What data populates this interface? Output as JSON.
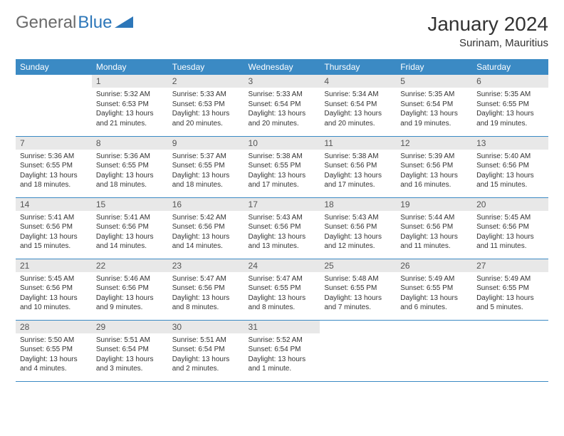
{
  "logo": {
    "general": "General",
    "blue": "Blue"
  },
  "title": "January 2024",
  "location": "Surinam, Mauritius",
  "colors": {
    "header_bg": "#3b8ac4",
    "header_text": "#ffffff",
    "daynum_bg": "#e8e8e8",
    "body_text": "#333333",
    "row_border": "#3b8ac4",
    "logo_gray": "#6a6a6a",
    "logo_blue": "#2d77b9"
  },
  "typography": {
    "title_fontsize": 28,
    "location_fontsize": 15,
    "header_fontsize": 12,
    "cell_fontsize": 10,
    "logo_fontsize": 24
  },
  "weekdays": [
    "Sunday",
    "Monday",
    "Tuesday",
    "Wednesday",
    "Thursday",
    "Friday",
    "Saturday"
  ],
  "weeks": [
    [
      {
        "n": "",
        "sunrise": "",
        "sunset": "",
        "daylight": ""
      },
      {
        "n": "1",
        "sunrise": "Sunrise: 5:32 AM",
        "sunset": "Sunset: 6:53 PM",
        "daylight": "Daylight: 13 hours and 21 minutes."
      },
      {
        "n": "2",
        "sunrise": "Sunrise: 5:33 AM",
        "sunset": "Sunset: 6:53 PM",
        "daylight": "Daylight: 13 hours and 20 minutes."
      },
      {
        "n": "3",
        "sunrise": "Sunrise: 5:33 AM",
        "sunset": "Sunset: 6:54 PM",
        "daylight": "Daylight: 13 hours and 20 minutes."
      },
      {
        "n": "4",
        "sunrise": "Sunrise: 5:34 AM",
        "sunset": "Sunset: 6:54 PM",
        "daylight": "Daylight: 13 hours and 20 minutes."
      },
      {
        "n": "5",
        "sunrise": "Sunrise: 5:35 AM",
        "sunset": "Sunset: 6:54 PM",
        "daylight": "Daylight: 13 hours and 19 minutes."
      },
      {
        "n": "6",
        "sunrise": "Sunrise: 5:35 AM",
        "sunset": "Sunset: 6:55 PM",
        "daylight": "Daylight: 13 hours and 19 minutes."
      }
    ],
    [
      {
        "n": "7",
        "sunrise": "Sunrise: 5:36 AM",
        "sunset": "Sunset: 6:55 PM",
        "daylight": "Daylight: 13 hours and 18 minutes."
      },
      {
        "n": "8",
        "sunrise": "Sunrise: 5:36 AM",
        "sunset": "Sunset: 6:55 PM",
        "daylight": "Daylight: 13 hours and 18 minutes."
      },
      {
        "n": "9",
        "sunrise": "Sunrise: 5:37 AM",
        "sunset": "Sunset: 6:55 PM",
        "daylight": "Daylight: 13 hours and 18 minutes."
      },
      {
        "n": "10",
        "sunrise": "Sunrise: 5:38 AM",
        "sunset": "Sunset: 6:55 PM",
        "daylight": "Daylight: 13 hours and 17 minutes."
      },
      {
        "n": "11",
        "sunrise": "Sunrise: 5:38 AM",
        "sunset": "Sunset: 6:56 PM",
        "daylight": "Daylight: 13 hours and 17 minutes."
      },
      {
        "n": "12",
        "sunrise": "Sunrise: 5:39 AM",
        "sunset": "Sunset: 6:56 PM",
        "daylight": "Daylight: 13 hours and 16 minutes."
      },
      {
        "n": "13",
        "sunrise": "Sunrise: 5:40 AM",
        "sunset": "Sunset: 6:56 PM",
        "daylight": "Daylight: 13 hours and 15 minutes."
      }
    ],
    [
      {
        "n": "14",
        "sunrise": "Sunrise: 5:41 AM",
        "sunset": "Sunset: 6:56 PM",
        "daylight": "Daylight: 13 hours and 15 minutes."
      },
      {
        "n": "15",
        "sunrise": "Sunrise: 5:41 AM",
        "sunset": "Sunset: 6:56 PM",
        "daylight": "Daylight: 13 hours and 14 minutes."
      },
      {
        "n": "16",
        "sunrise": "Sunrise: 5:42 AM",
        "sunset": "Sunset: 6:56 PM",
        "daylight": "Daylight: 13 hours and 14 minutes."
      },
      {
        "n": "17",
        "sunrise": "Sunrise: 5:43 AM",
        "sunset": "Sunset: 6:56 PM",
        "daylight": "Daylight: 13 hours and 13 minutes."
      },
      {
        "n": "18",
        "sunrise": "Sunrise: 5:43 AM",
        "sunset": "Sunset: 6:56 PM",
        "daylight": "Daylight: 13 hours and 12 minutes."
      },
      {
        "n": "19",
        "sunrise": "Sunrise: 5:44 AM",
        "sunset": "Sunset: 6:56 PM",
        "daylight": "Daylight: 13 hours and 11 minutes."
      },
      {
        "n": "20",
        "sunrise": "Sunrise: 5:45 AM",
        "sunset": "Sunset: 6:56 PM",
        "daylight": "Daylight: 13 hours and 11 minutes."
      }
    ],
    [
      {
        "n": "21",
        "sunrise": "Sunrise: 5:45 AM",
        "sunset": "Sunset: 6:56 PM",
        "daylight": "Daylight: 13 hours and 10 minutes."
      },
      {
        "n": "22",
        "sunrise": "Sunrise: 5:46 AM",
        "sunset": "Sunset: 6:56 PM",
        "daylight": "Daylight: 13 hours and 9 minutes."
      },
      {
        "n": "23",
        "sunrise": "Sunrise: 5:47 AM",
        "sunset": "Sunset: 6:56 PM",
        "daylight": "Daylight: 13 hours and 8 minutes."
      },
      {
        "n": "24",
        "sunrise": "Sunrise: 5:47 AM",
        "sunset": "Sunset: 6:55 PM",
        "daylight": "Daylight: 13 hours and 8 minutes."
      },
      {
        "n": "25",
        "sunrise": "Sunrise: 5:48 AM",
        "sunset": "Sunset: 6:55 PM",
        "daylight": "Daylight: 13 hours and 7 minutes."
      },
      {
        "n": "26",
        "sunrise": "Sunrise: 5:49 AM",
        "sunset": "Sunset: 6:55 PM",
        "daylight": "Daylight: 13 hours and 6 minutes."
      },
      {
        "n": "27",
        "sunrise": "Sunrise: 5:49 AM",
        "sunset": "Sunset: 6:55 PM",
        "daylight": "Daylight: 13 hours and 5 minutes."
      }
    ],
    [
      {
        "n": "28",
        "sunrise": "Sunrise: 5:50 AM",
        "sunset": "Sunset: 6:55 PM",
        "daylight": "Daylight: 13 hours and 4 minutes."
      },
      {
        "n": "29",
        "sunrise": "Sunrise: 5:51 AM",
        "sunset": "Sunset: 6:54 PM",
        "daylight": "Daylight: 13 hours and 3 minutes."
      },
      {
        "n": "30",
        "sunrise": "Sunrise: 5:51 AM",
        "sunset": "Sunset: 6:54 PM",
        "daylight": "Daylight: 13 hours and 2 minutes."
      },
      {
        "n": "31",
        "sunrise": "Sunrise: 5:52 AM",
        "sunset": "Sunset: 6:54 PM",
        "daylight": "Daylight: 13 hours and 1 minute."
      },
      {
        "n": "",
        "sunrise": "",
        "sunset": "",
        "daylight": ""
      },
      {
        "n": "",
        "sunrise": "",
        "sunset": "",
        "daylight": ""
      },
      {
        "n": "",
        "sunrise": "",
        "sunset": "",
        "daylight": ""
      }
    ]
  ]
}
